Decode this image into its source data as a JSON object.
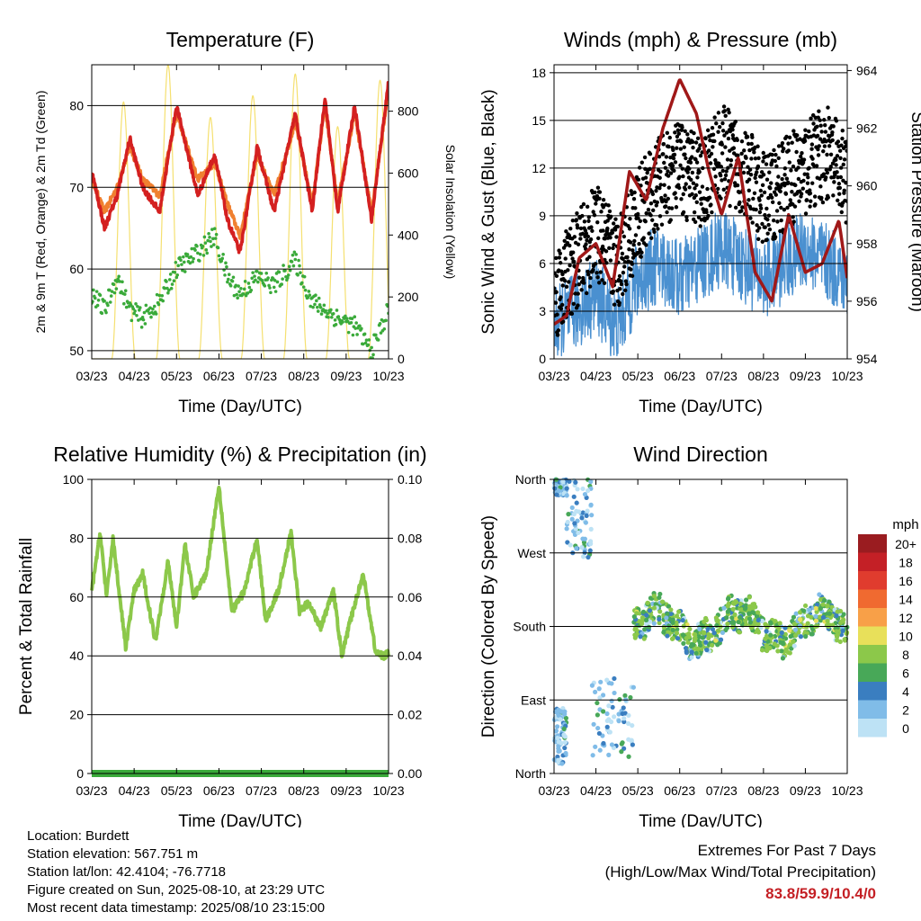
{
  "panels": {
    "temperature": {
      "title": "Temperature (F)",
      "y_left_label": "2m & 9m T (Red, Orange) & 2m Td (Green)",
      "y_right_label": "Solar Insolation (Yellow)",
      "x_label": "Time (Day/UTC)"
    },
    "winds": {
      "title": "Winds (mph) & Pressure (mb)",
      "y_left_label": "Sonic Wind & Gust (Blue, Black)",
      "y_right_label": "Station Pressure (Maroon)",
      "x_label": "Time (Day/UTC)"
    },
    "humidity": {
      "title": "Relative Humidity (%) & Precipitation (in)",
      "y_left_label": "Percent & Total Rainfall",
      "x_label": "Time (Day/UTC)"
    },
    "direction": {
      "title": "Wind Direction",
      "y_left_label": "Direction (Colored By Speed)",
      "x_label": "Time (Day/UTC)",
      "legend_title": "mph"
    }
  },
  "footer": {
    "location": "Location: Burdett",
    "elevation": "Station elevation: 567.751 m",
    "latlon": "Station lat/lon: 42.4104; -76.7718",
    "created": "Figure created on Sun, 2025-08-10, at 23:29 UTC",
    "recent": "Most recent data timestamp: 2025/08/10 23:15:00"
  },
  "extremes": {
    "title": "Extremes For Past 7 Days",
    "subtitle": "(High/Low/Max Wind/Total Precipitation)",
    "value": "83.8/59.9/10.4/0"
  },
  "colors": {
    "temp_2m": "#d42020",
    "temp_9m": "#f08030",
    "dewpoint": "#3aaa3a",
    "insolation": "#f5e070",
    "wind": "#4a90d0",
    "gust": "#000000",
    "pressure": "#a01818",
    "rh": "#8cc84a",
    "precip": "#3aaa3a"
  },
  "chart_data": [
    {
      "id": "temperature",
      "type": "line",
      "title": "Temperature (F)",
      "xlabel": "Time (Day/UTC)",
      "ylabel": "2m & 9m T (Red, Orange) & 2m Td (Green)",
      "y2label": "Solar Insolation (Yellow)",
      "x_ticks": [
        "03/23",
        "04/23",
        "05/23",
        "06/23",
        "07/23",
        "08/23",
        "09/23",
        "10/23"
      ],
      "ylim": [
        49,
        85
      ],
      "y_ticks": [
        50,
        60,
        70,
        80
      ],
      "y2lim": [
        0,
        950
      ],
      "y2_ticks": [
        0,
        200,
        400,
        600,
        800
      ],
      "grid": true,
      "series": [
        {
          "key": "t2m",
          "axis": "left",
          "x": [
            0,
            0.3,
            0.6,
            0.9,
            1.2,
            1.6,
            2.0,
            2.5,
            2.9,
            3.2,
            3.5,
            3.9,
            4.3,
            4.8,
            5.2,
            5.5,
            5.8,
            6.2,
            6.6,
            7.0
          ],
          "values": [
            72,
            65,
            69,
            76,
            70,
            67,
            80,
            69,
            74,
            66,
            62,
            75,
            67,
            79,
            67,
            81,
            67,
            80,
            66,
            83
          ]
        },
        {
          "key": "t9m",
          "axis": "left",
          "x": [
            0,
            0.3,
            0.6,
            0.9,
            1.2,
            1.6,
            2.0,
            2.5,
            2.9,
            3.2,
            3.5,
            3.9,
            4.3,
            4.8,
            5.2,
            5.5,
            5.8,
            6.2,
            6.6,
            7.0
          ],
          "values": [
            71,
            67,
            70,
            75,
            71,
            69,
            79,
            71,
            73,
            68,
            64,
            74,
            69,
            78,
            68,
            80,
            68,
            79,
            67,
            82
          ]
        },
        {
          "key": "td",
          "axis": "left",
          "x": [
            0,
            0.3,
            0.6,
            0.9,
            1.2,
            1.6,
            2.0,
            2.5,
            2.9,
            3.2,
            3.5,
            3.9,
            4.3,
            4.8,
            5.2,
            5.5,
            5.8,
            6.2,
            6.6,
            7.0
          ],
          "values": [
            57,
            55,
            59,
            55,
            54,
            56,
            60,
            62,
            64,
            59,
            57,
            59,
            58,
            61,
            56,
            55,
            54,
            53,
            50,
            55
          ]
        },
        {
          "key": "solar",
          "axis": "right",
          "peaks_x": [
            0.75,
            1.8,
            2.8,
            3.8,
            4.8,
            5.8,
            6.8
          ],
          "peaks": [
            830,
            950,
            780,
            850,
            920,
            750,
            900
          ]
        }
      ]
    },
    {
      "id": "winds",
      "type": "line",
      "title": "Winds (mph) & Pressure (mb)",
      "xlabel": "Time (Day/UTC)",
      "ylabel": "Sonic Wind & Gust (Blue, Black)",
      "y2label": "Station Pressure (Maroon)",
      "x_ticks": [
        "03/23",
        "04/23",
        "05/23",
        "06/23",
        "07/23",
        "08/23",
        "09/23",
        "10/23"
      ],
      "ylim": [
        0,
        18.5
      ],
      "y_ticks": [
        0,
        3,
        6,
        9,
        12,
        15,
        18
      ],
      "y2lim": [
        954,
        964.2
      ],
      "y2_ticks": [
        954,
        956,
        958,
        960,
        962,
        964
      ],
      "grid": true,
      "series": [
        {
          "key": "wind",
          "axis": "left",
          "x": [
            0,
            0.5,
            1.0,
            1.5,
            2.0,
            2.5,
            3.0,
            3.5,
            4.0,
            4.5,
            5.0,
            5.5,
            6.0,
            6.5,
            7.0
          ],
          "values": [
            2,
            3,
            4,
            2,
            5,
            6,
            5,
            6,
            7,
            6,
            5,
            6,
            7,
            6,
            5
          ]
        },
        {
          "key": "gust",
          "axis": "left",
          "x": [
            0,
            0.5,
            1.0,
            1.5,
            2.0,
            2.5,
            3.0,
            3.5,
            4.0,
            4.5,
            5.0,
            5.5,
            6.0,
            6.5,
            7.0
          ],
          "values": [
            4,
            6,
            8,
            6,
            9,
            11,
            12,
            11,
            13,
            12,
            10,
            11,
            12,
            13,
            11
          ]
        },
        {
          "key": "pressure",
          "axis": "right",
          "x": [
            0,
            0.3,
            0.6,
            1.0,
            1.4,
            1.8,
            2.2,
            2.6,
            3.0,
            3.4,
            3.7,
            4.0,
            4.4,
            4.8,
            5.2,
            5.6,
            6.0,
            6.4,
            6.8,
            7.0
          ],
          "values": [
            955.2,
            955.5,
            957.5,
            958.0,
            956.5,
            960.5,
            959.5,
            962.0,
            963.7,
            962.5,
            960.5,
            959.0,
            961.0,
            957.0,
            956.0,
            959.0,
            957.0,
            957.3,
            958.8,
            956.8
          ]
        }
      ]
    },
    {
      "id": "humidity",
      "type": "line",
      "title": "Relative Humidity (%) & Precipitation (in)",
      "xlabel": "Time (Day/UTC)",
      "ylabel": "Percent & Total Rainfall",
      "x_ticks": [
        "03/23",
        "04/23",
        "05/23",
        "06/23",
        "07/23",
        "08/23",
        "09/23",
        "10/23"
      ],
      "ylim": [
        0,
        100
      ],
      "y_ticks": [
        0,
        20,
        40,
        60,
        80,
        100
      ],
      "y2lim": [
        0,
        0.1
      ],
      "y2_ticks": [
        "0.00",
        "0.02",
        "0.04",
        "0.06",
        "0.08",
        "0.10"
      ],
      "grid": true,
      "series": [
        {
          "key": "rh",
          "axis": "left",
          "x": [
            0,
            0.2,
            0.35,
            0.5,
            0.8,
            1.0,
            1.2,
            1.5,
            1.8,
            2.0,
            2.2,
            2.4,
            2.7,
            3.0,
            3.3,
            3.6,
            3.9,
            4.1,
            4.4,
            4.7,
            4.9,
            5.1,
            5.4,
            5.7,
            5.9,
            6.1,
            6.4,
            6.7,
            6.9,
            7.0
          ],
          "values": [
            62,
            82,
            60,
            80,
            43,
            62,
            68,
            45,
            72,
            50,
            78,
            60,
            68,
            98,
            55,
            62,
            80,
            52,
            62,
            82,
            55,
            58,
            50,
            62,
            40,
            52,
            68,
            41,
            40,
            41
          ]
        },
        {
          "key": "precip",
          "axis": "right",
          "x": [
            0,
            7.0
          ],
          "values": [
            0,
            0
          ]
        }
      ]
    },
    {
      "id": "direction",
      "type": "scatter",
      "title": "Wind Direction",
      "xlabel": "Time (Day/UTC)",
      "ylabel": "Direction (Colored By Speed)",
      "x_ticks": [
        "03/23",
        "04/23",
        "05/23",
        "06/23",
        "07/23",
        "08/23",
        "09/23",
        "10/23"
      ],
      "y_ticks": [
        "North",
        "East",
        "South",
        "West",
        "North"
      ],
      "ylim": [
        0,
        360
      ],
      "grid": true,
      "legend": {
        "position": "right",
        "title": "mph",
        "levels": [
          "20+",
          "18",
          "16",
          "14",
          "12",
          "10",
          "8",
          "6",
          "4",
          "2",
          "0"
        ],
        "colors": [
          "#9a1c20",
          "#c42026",
          "#e03c2e",
          "#f06a30",
          "#f8a048",
          "#e8e05a",
          "#8cc84a",
          "#48a858",
          "#3a7ec0",
          "#80bce8",
          "#bde2f5"
        ]
      },
      "series": [
        {
          "key": "direction",
          "x_ranges": [
            [
              0,
              0.3
            ],
            [
              0,
              0.3
            ],
            [
              0.3,
              0.9
            ],
            [
              0.9,
              1.9
            ],
            [
              1.9,
              7.0
            ]
          ],
          "values_deg": [
            [
              340,
              360
            ],
            [
              10,
              80
            ],
            [
              260,
              360
            ],
            [
              20,
              120
            ],
            [
              150,
              230
            ]
          ]
        }
      ]
    }
  ]
}
